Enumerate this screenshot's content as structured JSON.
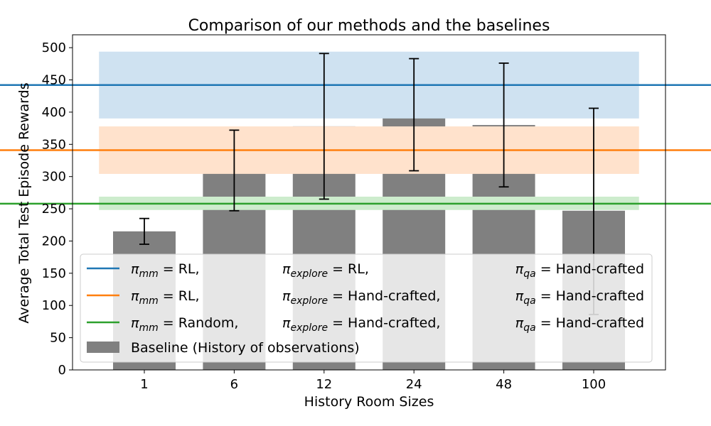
{
  "chart_data": {
    "type": "bar",
    "title": "Comparison of our methods and the baselines",
    "xlabel": "History Room Sizes",
    "ylabel": "Average Total Test Episode Rewards",
    "categories": [
      "1",
      "6",
      "12",
      "24",
      "48",
      "100"
    ],
    "ylim": [
      0,
      520
    ],
    "yticks": [
      0,
      50,
      100,
      150,
      200,
      250,
      300,
      350,
      400,
      450,
      500
    ],
    "grid": false,
    "legend_position": "lower-left",
    "series": [
      {
        "name": "Baseline (History of observations)",
        "color": "#808080",
        "values": [
          215,
          310,
          378,
          397,
          380,
          247
        ],
        "error_low": [
          195,
          247,
          265,
          309,
          284,
          86
        ],
        "error_high": [
          235,
          372,
          491,
          483,
          476,
          406
        ]
      }
    ],
    "reference_lines": [
      {
        "value": 442,
        "band": [
          391,
          493
        ],
        "color": "#1f77b4",
        "band_color": "#cfe2f1",
        "legend": {
          "mm_label": "π",
          "mm_sub": "mm",
          "mm_value": "RL,",
          "explore_label": "π",
          "explore_sub": "explore",
          "explore_value": "RL,",
          "qa_label": "π",
          "qa_sub": "qa",
          "qa_value": "Hand-crafted"
        }
      },
      {
        "value": 341,
        "band": [
          305,
          377
        ],
        "color": "#ff7f0e",
        "band_color": "#ffe2cc",
        "legend": {
          "mm_label": "π",
          "mm_sub": "mm",
          "mm_value": "RL,",
          "explore_label": "π",
          "explore_sub": "explore",
          "explore_value": "Hand-crafted,",
          "qa_label": "π",
          "qa_sub": "qa",
          "qa_value": "Hand-crafted"
        }
      },
      {
        "value": 258,
        "band": [
          249,
          268
        ],
        "color": "#2ca02c",
        "band_color": "#cdeccd",
        "legend": {
          "mm_label": "π",
          "mm_sub": "mm",
          "mm_value": "Random,",
          "explore_label": "π",
          "explore_sub": "explore",
          "explore_value": "Hand-crafted,",
          "qa_label": "π",
          "qa_sub": "qa",
          "qa_value": "Hand-crafted"
        }
      }
    ],
    "equals_sign": "="
  }
}
